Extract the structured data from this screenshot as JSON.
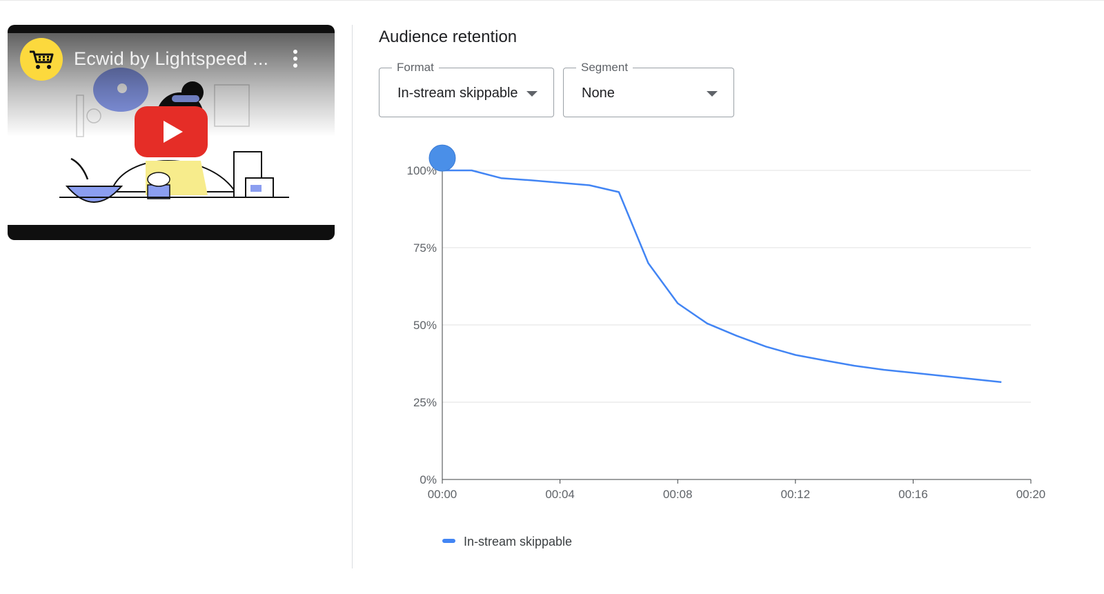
{
  "video": {
    "title": "Ecwid by Lightspeed ...",
    "channel_icon": "shopping-cart-icon",
    "menu_icon": "more-vert-icon",
    "play_icon": "youtube-play-icon"
  },
  "panel": {
    "title": "Audience retention",
    "format": {
      "label": "Format",
      "value": "In-stream skippable"
    },
    "segment": {
      "label": "Segment",
      "value": "None"
    }
  },
  "colors": {
    "series": "#4285f4",
    "marker": "#4a8fe8",
    "youtube_red": "#e52d27",
    "channel_yellow": "#fcd93d"
  },
  "chart_data": {
    "type": "line",
    "title": "Audience retention",
    "xlabel": "",
    "ylabel": "",
    "x_ticks": [
      "00:00",
      "00:04",
      "00:08",
      "00:12",
      "00:16",
      "00:20"
    ],
    "y_ticks": [
      "0%",
      "25%",
      "50%",
      "75%",
      "100%"
    ],
    "xlim": [
      0,
      20
    ],
    "ylim": [
      0,
      100
    ],
    "grid": true,
    "legend_position": "bottom-left",
    "series": [
      {
        "name": "In-stream skippable",
        "x": [
          0,
          1,
          2,
          3,
          4,
          5,
          6,
          7,
          8,
          9,
          10,
          11,
          12,
          13,
          14,
          15,
          16,
          17,
          18,
          19
        ],
        "values": [
          100,
          100,
          97.5,
          96.8,
          96,
          95.2,
          93,
          70,
          57,
          50.5,
          46.5,
          43,
          40.3,
          38.5,
          36.8,
          35.5,
          34.5,
          33.5,
          32.5,
          31.5
        ]
      }
    ],
    "marker": {
      "x": 0,
      "y": 104
    }
  }
}
